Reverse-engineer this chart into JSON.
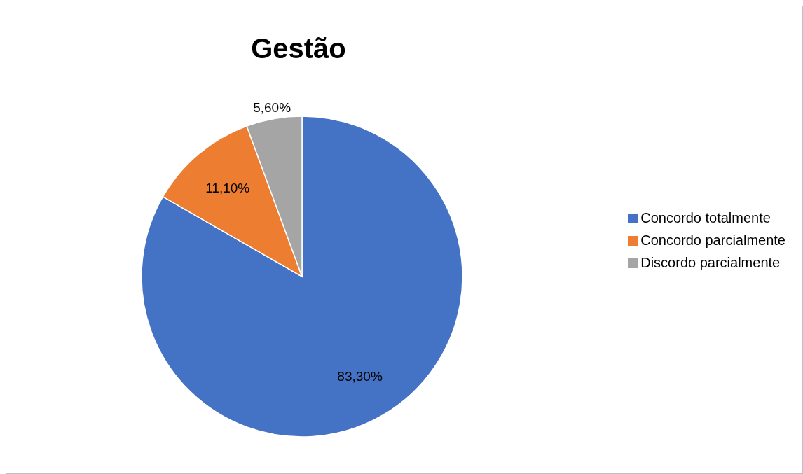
{
  "chart_data": {
    "type": "pie",
    "title": "Gestão",
    "categories": [
      "Concordo totalmente",
      "Concordo parcialmente",
      "Discordo parcialmente"
    ],
    "values": [
      83.3,
      11.1,
      5.6
    ],
    "colors": [
      "#4472c4",
      "#ed7d31",
      "#a5a5a5"
    ],
    "value_labels": [
      "83,30%",
      "11,10%",
      "5,60%"
    ],
    "legend": "right"
  }
}
